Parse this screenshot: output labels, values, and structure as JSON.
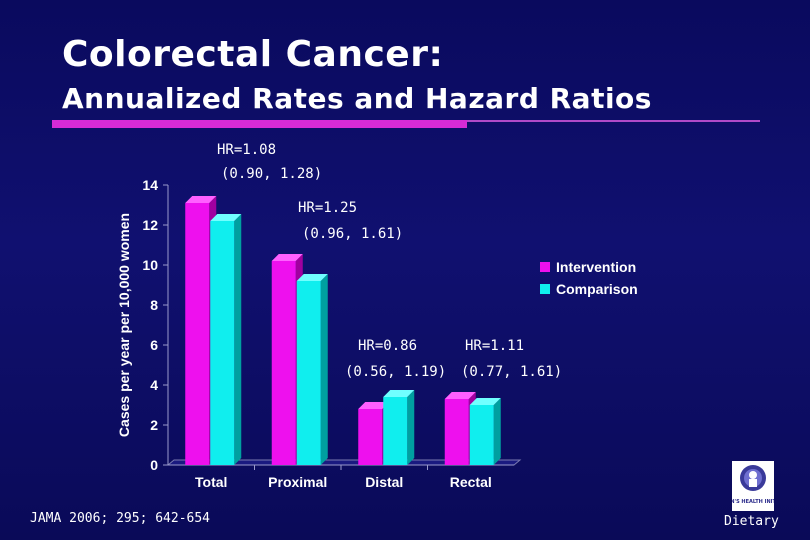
{
  "slide": {
    "title": "Colorectal Cancer:",
    "subtitle": "Annualized Rates and Hazard Ratios",
    "source": "JAMA 2006; 295; 642-654",
    "logo_text": "WOMEN'S HEALTH INITIATIVE",
    "footer_label": "Dietary"
  },
  "colors": {
    "intervention": "#ee10ee",
    "comparison": "#10eeee",
    "accent_rule": "#d62bd6"
  },
  "hazard_ratios": [
    {
      "hr": "HR=1.08",
      "ci": "(0.90, 1.28)"
    },
    {
      "hr": "HR=1.25",
      "ci": "(0.96, 1.61)"
    },
    {
      "hr": "HR=0.86",
      "ci": "(0.56, 1.19)"
    },
    {
      "hr": "HR=1.11",
      "ci": "(0.77, 1.61)"
    }
  ],
  "chart_data": {
    "type": "bar",
    "title": "",
    "xlabel": "",
    "ylabel": "Cases per year per 10,000 women",
    "categories": [
      "Total",
      "Proximal",
      "Distal",
      "Rectal"
    ],
    "series": [
      {
        "name": "Intervention",
        "values": [
          13.1,
          10.2,
          2.8,
          3.3
        ]
      },
      {
        "name": "Comparison",
        "values": [
          12.2,
          9.2,
          3.4,
          3.0
        ]
      }
    ],
    "ylim": [
      0,
      14
    ],
    "yticks": [
      0,
      2,
      4,
      6,
      8,
      10,
      12,
      14
    ],
    "legend": [
      "Intervention",
      "Comparison"
    ],
    "legend_position": "right",
    "grid": false
  }
}
